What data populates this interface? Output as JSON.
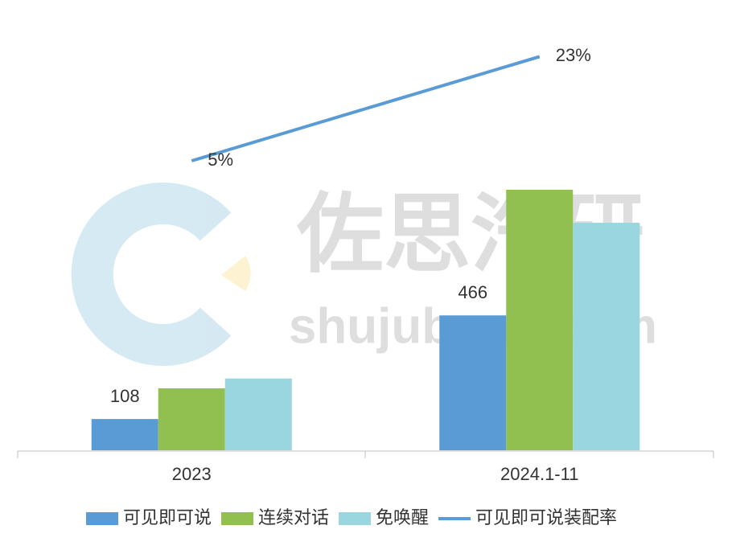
{
  "chart_data": {
    "type": "bar-line",
    "categories": [
      "2023",
      "2024.1-11"
    ],
    "series": [
      {
        "name": "可见即可说",
        "color": "#5b9bd5",
        "values": [
          108,
          466
        ],
        "show_labels": true
      },
      {
        "name": "连续对话",
        "color": "#92c050",
        "values": [
          214,
          900
        ]
      },
      {
        "name": "免唤醒",
        "color": "#9ad6df",
        "values": [
          248,
          786
        ]
      },
      {
        "name": "可见即可说装配率",
        "color": "#5b9bd5",
        "type": "line",
        "axis": "y2",
        "values": [
          5,
          23
        ],
        "value_labels": [
          "5%",
          "23%"
        ]
      }
    ],
    "ylim": [
      0,
      1500
    ],
    "y2lim": [
      -45,
      30
    ],
    "legend": "bottom"
  },
  "watermark": {
    "brand": "佐思汽研",
    "site": "shujubang.com"
  }
}
